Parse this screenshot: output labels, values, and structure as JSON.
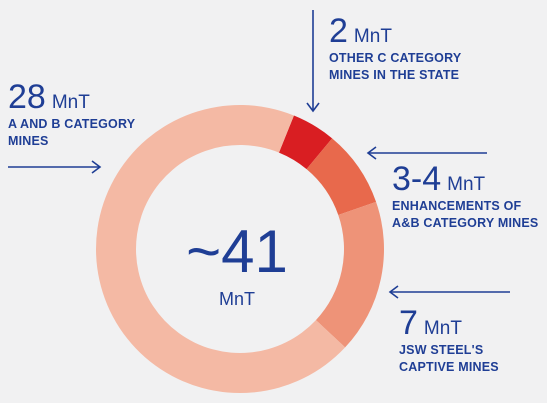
{
  "chart_data": {
    "type": "donut",
    "total": {
      "value": "~41",
      "unit": "MnT"
    },
    "slices": [
      {
        "value": "2",
        "unit": "MnT",
        "label": "OTHER C CATEGORY MINES IN THE STATE",
        "amount": 2,
        "color": "#d91e22"
      },
      {
        "value": "3-4",
        "unit": "MnT",
        "label": "ENHANCEMENTS OF A&B CATEGORY MINES",
        "amount": 3.5,
        "color": "#e8694c"
      },
      {
        "value": "7",
        "unit": "MnT",
        "label": "JSW STEEL'S CAPTIVE MINES",
        "amount": 7,
        "color": "#ee9378"
      },
      {
        "value": "28",
        "unit": "MnT",
        "label": "A AND B CATEGORY MINES",
        "amount": 28,
        "color": "#f4b9a4"
      }
    ],
    "legend_lines": {
      "s0": [
        "OTHER C CATEGORY",
        "MINES IN THE STATE"
      ],
      "s1": [
        "ENHANCEMENTS OF",
        "A&B CATEGORY MINES"
      ],
      "s2": [
        "JSW STEEL'S",
        "CAPTIVE MINES"
      ],
      "s3": [
        "A AND B CATEGORY",
        "MINES"
      ]
    },
    "text_color": "#1f3e95"
  }
}
